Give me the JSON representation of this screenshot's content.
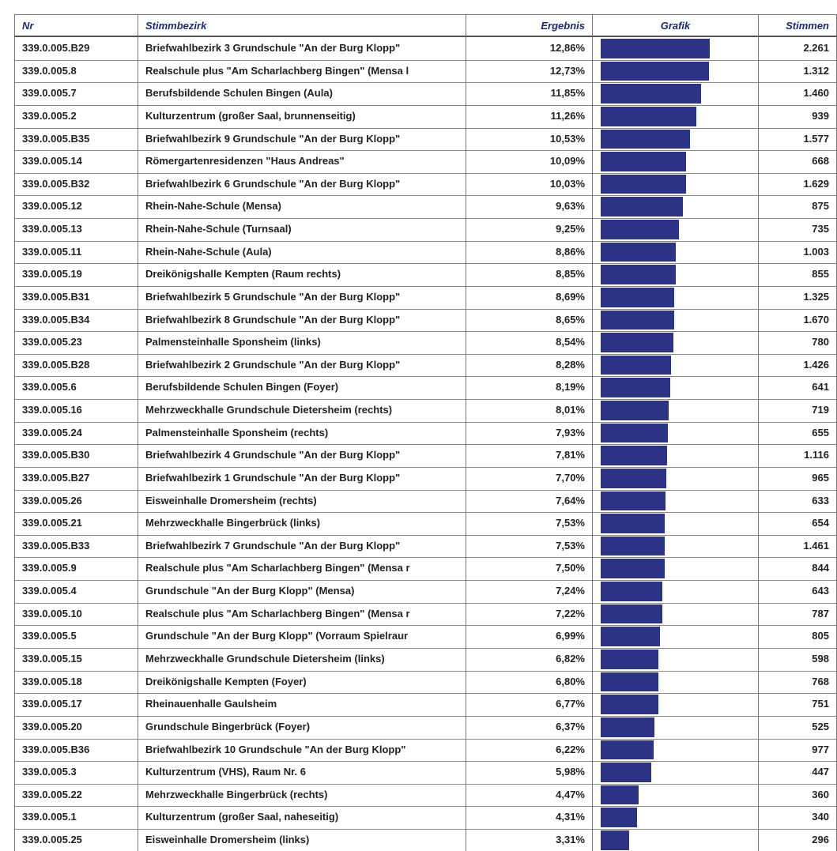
{
  "table": {
    "columns": [
      "Nr",
      "Stimmbezirk",
      "Ergebnis",
      "Grafik",
      "Stimmen"
    ],
    "rows": [
      [
        "339.0.005.B29",
        "Briefwahlbezirk 3 Grundschule \"An der Burg Klopp\"",
        "12,86%",
        "2.261"
      ],
      [
        "339.0.005.8",
        "Realschule plus \"Am Scharlachberg Bingen\" (Mensa l",
        "12,73%",
        "1.312"
      ],
      [
        "339.0.005.7",
        "Berufsbildende Schulen Bingen (Aula)",
        "11,85%",
        "1.460"
      ],
      [
        "339.0.005.2",
        "Kulturzentrum (großer Saal, brunnenseitig)",
        "11,26%",
        "939"
      ],
      [
        "339.0.005.B35",
        "Briefwahlbezirk 9 Grundschule \"An der Burg Klopp\"",
        "10,53%",
        "1.577"
      ],
      [
        "339.0.005.14",
        "Römergartenresidenzen \"Haus Andreas\"",
        "10,09%",
        "668"
      ],
      [
        "339.0.005.B32",
        "Briefwahlbezirk 6 Grundschule \"An der Burg Klopp\"",
        "10,03%",
        "1.629"
      ],
      [
        "339.0.005.12",
        "Rhein-Nahe-Schule (Mensa)",
        "9,63%",
        "875"
      ],
      [
        "339.0.005.13",
        "Rhein-Nahe-Schule (Turnsaal)",
        "9,25%",
        "735"
      ],
      [
        "339.0.005.11",
        "Rhein-Nahe-Schule (Aula)",
        "8,86%",
        "1.003"
      ],
      [
        "339.0.005.19",
        "Dreikönigshalle Kempten (Raum rechts)",
        "8,85%",
        "855"
      ],
      [
        "339.0.005.B31",
        "Briefwahlbezirk 5 Grundschule \"An der Burg Klopp\"",
        "8,69%",
        "1.325"
      ],
      [
        "339.0.005.B34",
        "Briefwahlbezirk 8 Grundschule \"An der Burg Klopp\"",
        "8,65%",
        "1.670"
      ],
      [
        "339.0.005.23",
        "Palmensteinhalle Sponsheim (links)",
        "8,54%",
        "780"
      ],
      [
        "339.0.005.B28",
        "Briefwahlbezirk 2 Grundschule \"An der Burg Klopp\"",
        "8,28%",
        "1.426"
      ],
      [
        "339.0.005.6",
        "Berufsbildende Schulen Bingen (Foyer)",
        "8,19%",
        "641"
      ],
      [
        "339.0.005.16",
        "Mehrzweckhalle Grundschule Dietersheim (rechts)",
        "8,01%",
        "719"
      ],
      [
        "339.0.005.24",
        "Palmensteinhalle Sponsheim (rechts)",
        "7,93%",
        "655"
      ],
      [
        "339.0.005.B30",
        "Briefwahlbezirk 4 Grundschule \"An der Burg Klopp\"",
        "7,81%",
        "1.116"
      ],
      [
        "339.0.005.B27",
        "Briefwahlbezirk 1 Grundschule \"An der Burg Klopp\"",
        "7,70%",
        "965"
      ],
      [
        "339.0.005.26",
        "Eisweinhalle Dromersheim (rechts)",
        "7,64%",
        "633"
      ],
      [
        "339.0.005.21",
        "Mehrzweckhalle Bingerbrück (links)",
        "7,53%",
        "654"
      ],
      [
        "339.0.005.B33",
        "Briefwahlbezirk 7 Grundschule \"An der Burg Klopp\"",
        "7,53%",
        "1.461"
      ],
      [
        "339.0.005.9",
        "Realschule plus \"Am Scharlachberg Bingen\" (Mensa r",
        "7,50%",
        "844"
      ],
      [
        "339.0.005.4",
        "Grundschule \"An der Burg Klopp\" (Mensa)",
        "7,24%",
        "643"
      ],
      [
        "339.0.005.10",
        "Realschule plus \"Am Scharlachberg Bingen\" (Mensa r",
        "7,22%",
        "787"
      ],
      [
        "339.0.005.5",
        "Grundschule \"An der Burg Klopp\" (Vorraum Spielraur",
        "6,99%",
        "805"
      ],
      [
        "339.0.005.15",
        "Mehrzweckhalle Grundschule Dietersheim (links)",
        "6,82%",
        "598"
      ],
      [
        "339.0.005.18",
        "Dreikönigshalle Kempten (Foyer)",
        "6,80%",
        "768"
      ],
      [
        "339.0.005.17",
        "Rheinauenhalle Gaulsheim",
        "6,77%",
        "751"
      ],
      [
        "339.0.005.20",
        "Grundschule Bingerbrück (Foyer)",
        "6,37%",
        "525"
      ],
      [
        "339.0.005.B36",
        "Briefwahlbezirk 10 Grundschule \"An der Burg Klopp\"",
        "6,22%",
        "977"
      ],
      [
        "339.0.005.3",
        "Kulturzentrum (VHS), Raum Nr. 6",
        "5,98%",
        "447"
      ],
      [
        "339.0.005.22",
        "Mehrzweckhalle Bingerbrück (rechts)",
        "4,47%",
        "360"
      ],
      [
        "339.0.005.1",
        "Kulturzentrum (großer Saal, naheseitig)",
        "4,31%",
        "340"
      ],
      [
        "339.0.005.25",
        "Eisweinhalle Dromersheim (links)",
        "3,31%",
        "296"
      ]
    ]
  }
}
